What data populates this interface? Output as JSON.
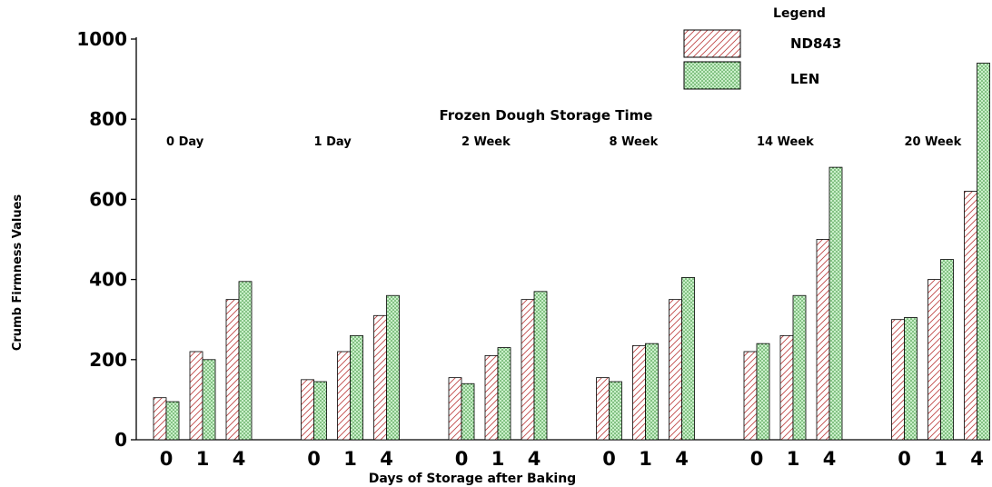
{
  "chart_data": {
    "type": "bar",
    "title": "Frozen Dough Storage Time",
    "xlabel": "Days of Storage after Baking",
    "ylabel": "Crumb Firmness Values",
    "ylim": [
      0,
      1000
    ],
    "yticks": [
      0,
      200,
      400,
      600,
      800,
      1000
    ],
    "legend": {
      "title": "Legend",
      "placement": "top-right"
    },
    "groups": [
      "0 Day",
      "1 Day",
      "2 Week",
      "8 Week",
      "14 Week",
      "20 Week"
    ],
    "categories": [
      "0",
      "1",
      "4"
    ],
    "series": [
      {
        "name": "ND843",
        "color": "#c04848",
        "pattern": "hatch",
        "values": [
          [
            105,
            220,
            350
          ],
          [
            150,
            220,
            310
          ],
          [
            155,
            210,
            350
          ],
          [
            155,
            235,
            350
          ],
          [
            220,
            260,
            500
          ],
          [
            300,
            400,
            620
          ]
        ]
      },
      {
        "name": "LEN",
        "color": "#3a9a3a",
        "pattern": "dots",
        "values": [
          [
            95,
            200,
            395
          ],
          [
            145,
            260,
            360
          ],
          [
            140,
            230,
            370
          ],
          [
            145,
            240,
            405
          ],
          [
            240,
            360,
            680
          ],
          [
            305,
            450,
            940
          ]
        ]
      }
    ]
  }
}
